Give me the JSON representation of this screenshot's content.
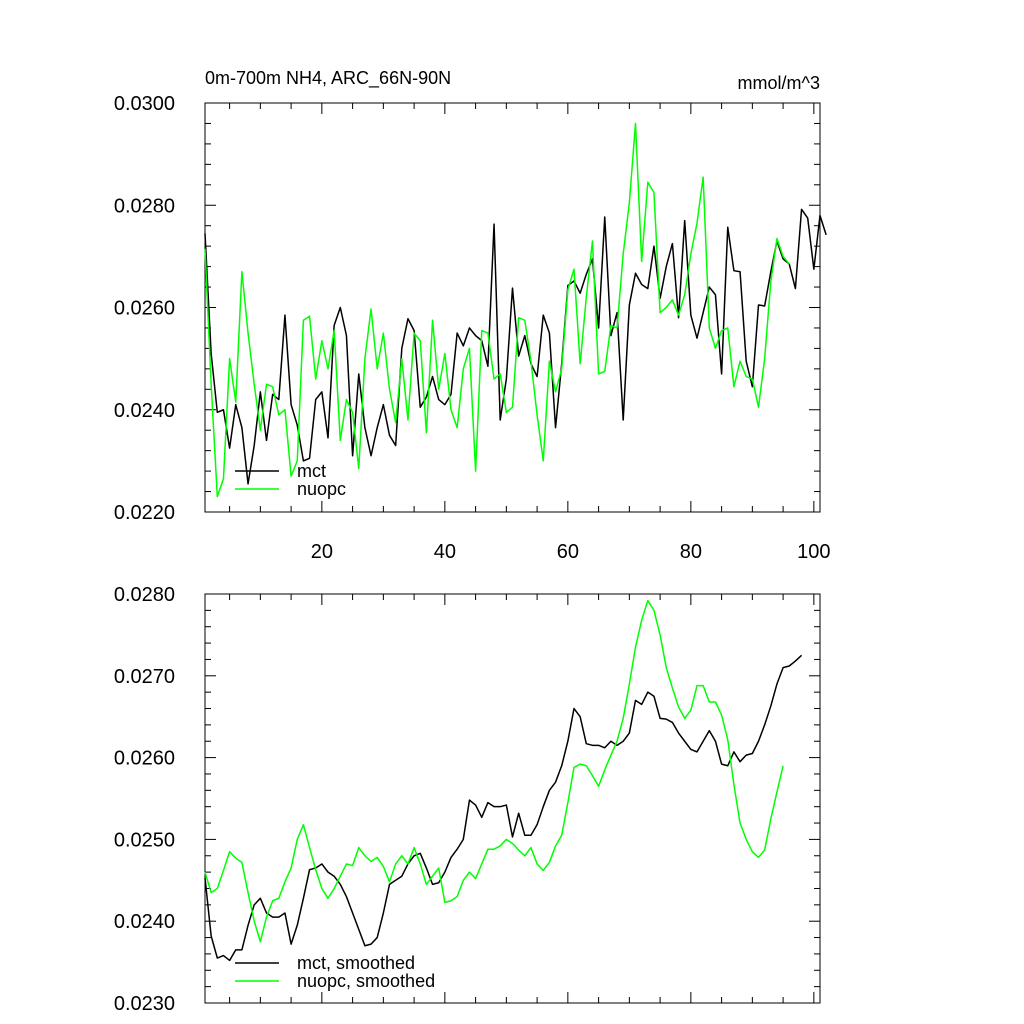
{
  "chart_data": [
    {
      "type": "line",
      "title": "0m-700m NH4, ARC_66N-90N",
      "units": "mmol/m^3",
      "xlim": [
        1,
        101
      ],
      "ylim": [
        0.022,
        0.03
      ],
      "xticks": [
        20,
        40,
        60,
        80,
        100
      ],
      "yticks": [
        "0.0220",
        "0.0240",
        "0.0260",
        "0.0280",
        "0.0300"
      ],
      "legend_position": "bottom-left",
      "series": [
        {
          "name": "mct",
          "color": "#000000",
          "values": [
            0.02745,
            0.0251,
            0.02395,
            0.024,
            0.02325,
            0.0241,
            0.02365,
            0.02255,
            0.0233,
            0.02435,
            0.0234,
            0.0243,
            0.0242,
            0.02585,
            0.0241,
            0.0237,
            0.023,
            0.02305,
            0.0242,
            0.02435,
            0.02345,
            0.02565,
            0.026,
            0.02545,
            0.0231,
            0.0247,
            0.02365,
            0.0231,
            0.02365,
            0.0241,
            0.0235,
            0.0233,
            0.0252,
            0.02578,
            0.02555,
            0.02405,
            0.02425,
            0.02465,
            0.0242,
            0.0241,
            0.0243,
            0.0255,
            0.02525,
            0.0256,
            0.02545,
            0.02535,
            0.02485,
            0.02763,
            0.0238,
            0.0246,
            0.02638,
            0.02505,
            0.02545,
            0.0249,
            0.02465,
            0.02585,
            0.0255,
            0.02365,
            0.0249,
            0.02643,
            0.02652,
            0.02628,
            0.02665,
            0.02695,
            0.0256,
            0.02777,
            0.02545,
            0.0259,
            0.0238,
            0.02605,
            0.02667,
            0.02645,
            0.02637,
            0.0272,
            0.02618,
            0.0268,
            0.02725,
            0.0258,
            0.0277,
            0.02585,
            0.0254,
            0.0259,
            0.0264,
            0.02625,
            0.0247,
            0.02757,
            0.02672,
            0.0267,
            0.02495,
            0.02445,
            0.02605,
            0.02603,
            0.0267,
            0.0273,
            0.02695,
            0.02685,
            0.02637,
            0.02792,
            0.02775,
            0.02675,
            0.0278,
            0.02742
          ]
        },
        {
          "name": "nuopc",
          "color": "#00ff00",
          "values": [
            0.02715,
            0.0245,
            0.0223,
            0.02265,
            0.025,
            0.02415,
            0.0267,
            0.0255,
            0.0245,
            0.0236,
            0.0245,
            0.02445,
            0.0239,
            0.024,
            0.0227,
            0.023,
            0.02575,
            0.02583,
            0.0246,
            0.02535,
            0.0248,
            0.02555,
            0.0234,
            0.0242,
            0.02395,
            0.02285,
            0.025,
            0.02597,
            0.0248,
            0.0255,
            0.0244,
            0.02375,
            0.025,
            0.0238,
            0.0255,
            0.02535,
            0.02355,
            0.02575,
            0.0244,
            0.0251,
            0.024,
            0.02365,
            0.0248,
            0.0252,
            0.0228,
            0.02555,
            0.0255,
            0.0246,
            0.0247,
            0.02395,
            0.02405,
            0.0258,
            0.02575,
            0.02495,
            0.0239,
            0.023,
            0.02495,
            0.02435,
            0.0248,
            0.02635,
            0.02675,
            0.0249,
            0.0262,
            0.0273,
            0.0247,
            0.02475,
            0.02565,
            0.0256,
            0.02705,
            0.02805,
            0.0296,
            0.0269,
            0.02845,
            0.02825,
            0.0259,
            0.026,
            0.02615,
            0.02585,
            0.02625,
            0.02705,
            0.02765,
            0.02855,
            0.0256,
            0.0252,
            0.02555,
            0.0256,
            0.02445,
            0.02495,
            0.02465,
            0.0246,
            0.02405,
            0.025,
            0.0265,
            0.02735,
            0.027,
            0.02685
          ]
        }
      ]
    },
    {
      "type": "line",
      "title": "",
      "units": "",
      "xlim": [
        1,
        101
      ],
      "ylim": [
        0.023,
        0.028
      ],
      "xticks": [
        20,
        40,
        60,
        80,
        100
      ],
      "yticks": [
        "0.0230",
        "0.0240",
        "0.0250",
        "0.0260",
        "0.0270",
        "0.0280"
      ],
      "legend_position": "bottom-left",
      "series": [
        {
          "name": "mct, smoothed",
          "color": "#000000",
          "values": [
            0.02453,
            0.02382,
            0.02355,
            0.02358,
            0.02352,
            0.02365,
            0.02365,
            0.02395,
            0.0242,
            0.02428,
            0.0241,
            0.02405,
            0.02405,
            0.0241,
            0.02372,
            0.02395,
            0.02428,
            0.02463,
            0.02465,
            0.0247,
            0.0246,
            0.02455,
            0.02445,
            0.0243,
            0.0241,
            0.0239,
            0.0237,
            0.02372,
            0.0238,
            0.0241,
            0.02445,
            0.0245,
            0.02455,
            0.0247,
            0.0248,
            0.02483,
            0.02465,
            0.02445,
            0.02447,
            0.0246,
            0.02478,
            0.02488,
            0.025,
            0.02548,
            0.02542,
            0.02527,
            0.02545,
            0.0254,
            0.0254,
            0.02542,
            0.02503,
            0.02532,
            0.02505,
            0.02505,
            0.02518,
            0.0254,
            0.0256,
            0.0257,
            0.0259,
            0.0262,
            0.0266,
            0.0265,
            0.02617,
            0.02615,
            0.02615,
            0.02612,
            0.0262,
            0.02615,
            0.0262,
            0.0263,
            0.0267,
            0.02665,
            0.0268,
            0.02675,
            0.02648,
            0.02647,
            0.02643,
            0.0263,
            0.0262,
            0.0261,
            0.02607,
            0.0262,
            0.02633,
            0.0262,
            0.02592,
            0.0259,
            0.02607,
            0.02595,
            0.02603,
            0.02605,
            0.0262,
            0.0264,
            0.02663,
            0.0269,
            0.0271,
            0.02712,
            0.02718,
            0.02725
          ]
        },
        {
          "name": "nuopc, smoothed",
          "color": "#00ff00",
          "values": [
            0.0246,
            0.02435,
            0.0244,
            0.02462,
            0.02485,
            0.02477,
            0.02472,
            0.02435,
            0.024,
            0.02375,
            0.02405,
            0.02425,
            0.02428,
            0.02448,
            0.02465,
            0.025,
            0.02518,
            0.0249,
            0.02463,
            0.0244,
            0.02428,
            0.0244,
            0.02455,
            0.0247,
            0.02468,
            0.0249,
            0.0248,
            0.02473,
            0.02478,
            0.02467,
            0.02448,
            0.0247,
            0.0248,
            0.0247,
            0.0249,
            0.0247,
            0.02445,
            0.02455,
            0.02465,
            0.02423,
            0.02425,
            0.0243,
            0.0245,
            0.0246,
            0.02452,
            0.0247,
            0.02488,
            0.02488,
            0.02492,
            0.025,
            0.02495,
            0.02487,
            0.0248,
            0.0249,
            0.0247,
            0.02462,
            0.02472,
            0.02492,
            0.02505,
            0.02545,
            0.02588,
            0.02592,
            0.0259,
            0.02578,
            0.02565,
            0.02585,
            0.02603,
            0.0262,
            0.02648,
            0.0269,
            0.02735,
            0.02768,
            0.02792,
            0.0278,
            0.0275,
            0.0271,
            0.02685,
            0.02662,
            0.02648,
            0.02658,
            0.02688,
            0.02688,
            0.02668,
            0.02668,
            0.02652,
            0.02622,
            0.02567,
            0.0252,
            0.025,
            0.02485,
            0.02478,
            0.02487,
            0.02525,
            0.02558,
            0.0259
          ]
        }
      ]
    }
  ]
}
